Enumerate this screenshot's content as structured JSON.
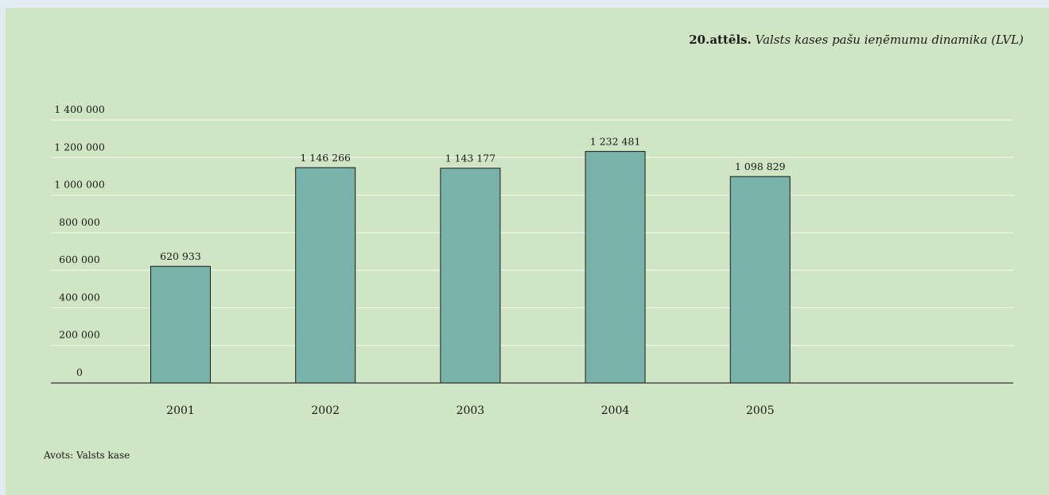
{
  "figure": {
    "number": "20.attēls.",
    "title": "Valsts kases pašu ieņēmumu dinamika (LVL)",
    "source": "Avots: Valsts kase"
  },
  "colors": {
    "background": "#cfe5c3",
    "bar_fill": "#78b2ab",
    "bar_stroke": "#1a1a1a",
    "gridline": "#f2f7ee",
    "axis": "#333333"
  },
  "chart_data": {
    "type": "bar",
    "title": "Valsts kases pašu ieņēmumu dinamika (LVL)",
    "categories": [
      "2001",
      "2002",
      "2003",
      "2004",
      "2005"
    ],
    "values": [
      620933,
      1146266,
      1143177,
      1232481,
      1098829
    ],
    "value_labels": [
      "620 933",
      "1 146 266",
      "1 143 177",
      "1 232 481",
      "1 098 829"
    ],
    "yticks": [
      0,
      200000,
      400000,
      600000,
      800000,
      1000000,
      1200000,
      1400000
    ],
    "ytick_labels": [
      "0",
      "200 000",
      "400 000",
      "600 000",
      "800 000",
      "1 000 000",
      "1 200 000",
      "1 400 000"
    ],
    "ylim": [
      0,
      1400000
    ],
    "xlabel": "",
    "ylabel": "",
    "grid": true,
    "legend": "none"
  }
}
